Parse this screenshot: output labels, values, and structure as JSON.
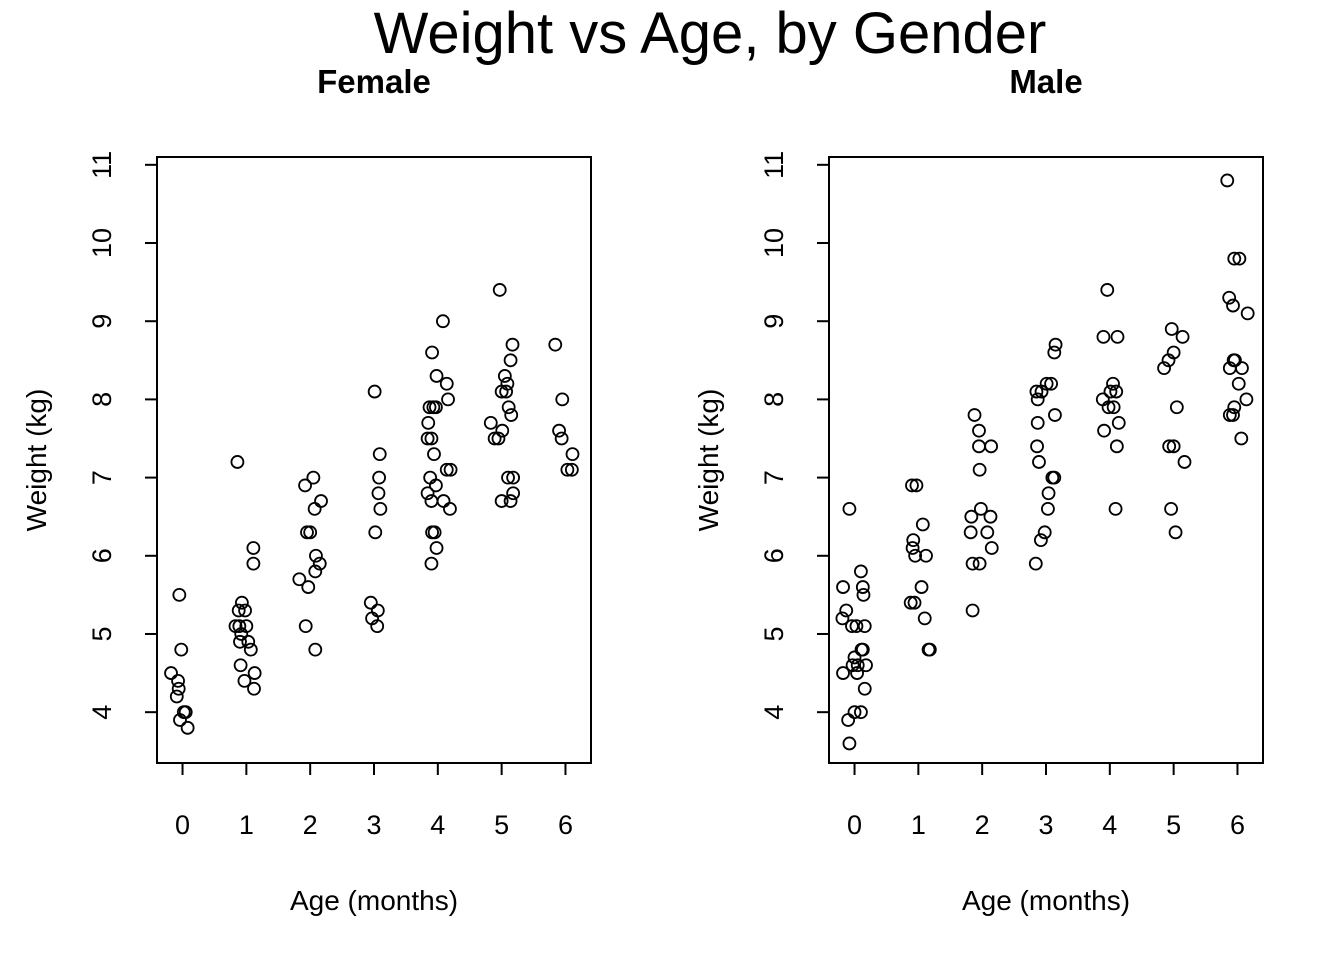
{
  "title": "Weight vs Age, by Gender",
  "chart_data": [
    {
      "type": "scatter",
      "title": "Female",
      "xlabel": "Age (months)",
      "ylabel": "Weight (kg)",
      "xlim": [
        -0.4,
        6.4
      ],
      "ylim": [
        3.35,
        11.1
      ],
      "xticks": [
        "0",
        "1",
        "2",
        "3",
        "4",
        "5",
        "6"
      ],
      "yticks": [
        "4",
        "5",
        "6",
        "7",
        "8",
        "9",
        "10",
        "11"
      ],
      "grid": false,
      "points": [
        [
          -0.18,
          4.5
        ],
        [
          -0.05,
          5.5
        ],
        [
          -0.07,
          4.4
        ],
        [
          -0.02,
          4.8
        ],
        [
          -0.06,
          4.3
        ],
        [
          -0.09,
          4.2
        ],
        [
          -0.04,
          3.9
        ],
        [
          0.02,
          4.0
        ],
        [
          0.05,
          4.0
        ],
        [
          0.08,
          3.8
        ],
        [
          0.86,
          7.2
        ],
        [
          0.83,
          5.1
        ],
        [
          0.88,
          5.3
        ],
        [
          0.93,
          5.4
        ],
        [
          0.89,
          5.1
        ],
        [
          0.92,
          5.0
        ],
        [
          0.9,
          4.9
        ],
        [
          0.91,
          4.6
        ],
        [
          0.97,
          4.4
        ],
        [
          0.98,
          5.3
        ],
        [
          1.0,
          5.1
        ],
        [
          1.03,
          4.9
        ],
        [
          1.07,
          4.8
        ],
        [
          1.11,
          6.1
        ],
        [
          1.11,
          5.9
        ],
        [
          1.13,
          4.5
        ],
        [
          1.12,
          4.3
        ],
        [
          1.83,
          5.7
        ],
        [
          1.92,
          6.9
        ],
        [
          1.95,
          6.3
        ],
        [
          2.0,
          6.3
        ],
        [
          1.97,
          5.6
        ],
        [
          1.93,
          5.1
        ],
        [
          2.05,
          7.0
        ],
        [
          2.07,
          6.6
        ],
        [
          2.17,
          6.7
        ],
        [
          2.09,
          6.0
        ],
        [
          2.08,
          5.8
        ],
        [
          2.15,
          5.9
        ],
        [
          2.08,
          4.8
        ],
        [
          2.95,
          5.4
        ],
        [
          2.97,
          5.2
        ],
        [
          3.02,
          6.3
        ],
        [
          3.01,
          8.1
        ],
        [
          3.09,
          7.3
        ],
        [
          3.08,
          7.0
        ],
        [
          3.07,
          6.8
        ],
        [
          3.1,
          6.6
        ],
        [
          3.06,
          5.3
        ],
        [
          3.05,
          5.1
        ],
        [
          3.91,
          8.6
        ],
        [
          3.87,
          7.9
        ],
        [
          3.93,
          7.9
        ],
        [
          3.97,
          7.9
        ],
        [
          3.85,
          7.7
        ],
        [
          3.84,
          7.5
        ],
        [
          3.9,
          7.5
        ],
        [
          3.94,
          7.3
        ],
        [
          3.88,
          7.0
        ],
        [
          3.84,
          6.8
        ],
        [
          3.9,
          6.7
        ],
        [
          3.97,
          6.9
        ],
        [
          3.91,
          6.3
        ],
        [
          3.95,
          6.3
        ],
        [
          3.9,
          5.9
        ],
        [
          3.98,
          6.1
        ],
        [
          4.08,
          9.0
        ],
        [
          3.98,
          8.3
        ],
        [
          4.14,
          8.2
        ],
        [
          4.16,
          8.0
        ],
        [
          4.14,
          7.1
        ],
        [
          4.2,
          7.1
        ],
        [
          4.09,
          6.7
        ],
        [
          4.19,
          6.6
        ],
        [
          4.97,
          9.4
        ],
        [
          5.05,
          8.3
        ],
        [
          5.14,
          8.5
        ],
        [
          5.17,
          8.7
        ],
        [
          5.09,
          8.2
        ],
        [
          5.0,
          8.1
        ],
        [
          5.07,
          8.1
        ],
        [
          5.11,
          7.9
        ],
        [
          5.15,
          7.8
        ],
        [
          4.83,
          7.7
        ],
        [
          4.89,
          7.5
        ],
        [
          4.95,
          7.5
        ],
        [
          5.01,
          7.6
        ],
        [
          5.1,
          7.0
        ],
        [
          5.18,
          7.0
        ],
        [
          5.0,
          6.7
        ],
        [
          5.14,
          6.7
        ],
        [
          5.18,
          6.8
        ],
        [
          5.84,
          8.7
        ],
        [
          5.95,
          8.0
        ],
        [
          5.9,
          7.6
        ],
        [
          5.94,
          7.5
        ],
        [
          6.11,
          7.3
        ],
        [
          6.03,
          7.1
        ],
        [
          6.1,
          7.1
        ]
      ]
    },
    {
      "type": "scatter",
      "title": "Male",
      "xlabel": "Age (months)",
      "ylabel": "Weight (kg)",
      "xlim": [
        -0.4,
        6.4
      ],
      "ylim": [
        3.35,
        11.1
      ],
      "xticks": [
        "0",
        "1",
        "2",
        "3",
        "4",
        "5",
        "6"
      ],
      "yticks": [
        "4",
        "5",
        "6",
        "7",
        "8",
        "9",
        "10",
        "11"
      ],
      "grid": false,
      "points": [
        [
          -0.18,
          5.6
        ],
        [
          -0.19,
          5.2
        ],
        [
          -0.18,
          4.5
        ],
        [
          -0.13,
          5.3
        ],
        [
          -0.08,
          6.6
        ],
        [
          -0.04,
          5.1
        ],
        [
          -0.1,
          3.9
        ],
        [
          -0.08,
          3.6
        ],
        [
          0.0,
          4.0
        ],
        [
          -0.03,
          4.6
        ],
        [
          0.0,
          4.7
        ],
        [
          0.05,
          4.6
        ],
        [
          0.04,
          4.5
        ],
        [
          0.03,
          5.1
        ],
        [
          0.1,
          5.8
        ],
        [
          0.13,
          5.6
        ],
        [
          0.14,
          5.5
        ],
        [
          0.16,
          5.1
        ],
        [
          0.11,
          4.8
        ],
        [
          0.13,
          4.8
        ],
        [
          0.18,
          4.6
        ],
        [
          0.16,
          4.3
        ],
        [
          0.1,
          4.0
        ],
        [
          0.88,
          5.4
        ],
        [
          0.94,
          5.4
        ],
        [
          0.9,
          6.9
        ],
        [
          0.97,
          6.9
        ],
        [
          0.92,
          6.2
        ],
        [
          0.91,
          6.1
        ],
        [
          0.95,
          6.0
        ],
        [
          1.07,
          6.4
        ],
        [
          1.12,
          6.0
        ],
        [
          1.05,
          5.6
        ],
        [
          1.1,
          5.2
        ],
        [
          1.16,
          4.8
        ],
        [
          1.18,
          4.8
        ],
        [
          1.85,
          5.3
        ],
        [
          1.88,
          7.8
        ],
        [
          1.95,
          7.6
        ],
        [
          1.96,
          7.1
        ],
        [
          1.95,
          7.4
        ],
        [
          2.14,
          7.4
        ],
        [
          1.83,
          6.5
        ],
        [
          1.82,
          6.3
        ],
        [
          1.98,
          6.6
        ],
        [
          2.08,
          6.3
        ],
        [
          2.13,
          6.5
        ],
        [
          2.15,
          6.1
        ],
        [
          1.85,
          5.9
        ],
        [
          1.96,
          5.9
        ],
        [
          2.85,
          8.1
        ],
        [
          2.87,
          8.0
        ],
        [
          2.87,
          7.7
        ],
        [
          2.86,
          7.4
        ],
        [
          2.89,
          7.2
        ],
        [
          2.93,
          8.1
        ],
        [
          3.01,
          8.2
        ],
        [
          3.08,
          8.2
        ],
        [
          3.15,
          8.7
        ],
        [
          3.13,
          8.6
        ],
        [
          3.14,
          7.8
        ],
        [
          3.1,
          7.0
        ],
        [
          3.13,
          7.0
        ],
        [
          3.04,
          6.8
        ],
        [
          3.03,
          6.6
        ],
        [
          2.98,
          6.3
        ],
        [
          2.92,
          6.2
        ],
        [
          2.84,
          5.9
        ],
        [
          3.9,
          8.8
        ],
        [
          3.96,
          9.4
        ],
        [
          3.89,
          8.0
        ],
        [
          3.91,
          7.6
        ],
        [
          3.98,
          7.9
        ],
        [
          4.01,
          8.1
        ],
        [
          4.05,
          8.2
        ],
        [
          4.06,
          7.9
        ],
        [
          4.1,
          8.1
        ],
        [
          4.12,
          8.8
        ],
        [
          4.14,
          7.7
        ],
        [
          4.11,
          7.4
        ],
        [
          4.09,
          6.6
        ],
        [
          4.85,
          8.4
        ],
        [
          4.92,
          8.5
        ],
        [
          4.97,
          8.9
        ],
        [
          5.0,
          8.6
        ],
        [
          5.14,
          8.8
        ],
        [
          5.05,
          7.9
        ],
        [
          4.93,
          7.4
        ],
        [
          5.0,
          7.4
        ],
        [
          5.17,
          7.2
        ],
        [
          4.96,
          6.6
        ],
        [
          5.03,
          6.3
        ],
        [
          5.84,
          10.8
        ],
        [
          5.95,
          9.8
        ],
        [
          6.03,
          9.8
        ],
        [
          5.87,
          9.3
        ],
        [
          5.93,
          9.2
        ],
        [
          6.16,
          9.1
        ],
        [
          5.94,
          8.5
        ],
        [
          5.96,
          8.5
        ],
        [
          5.88,
          8.4
        ],
        [
          6.07,
          8.4
        ],
        [
          6.02,
          8.2
        ],
        [
          6.14,
          8.0
        ],
        [
          5.95,
          7.9
        ],
        [
          5.88,
          7.8
        ],
        [
          5.93,
          7.8
        ],
        [
          6.06,
          7.5
        ]
      ]
    }
  ]
}
